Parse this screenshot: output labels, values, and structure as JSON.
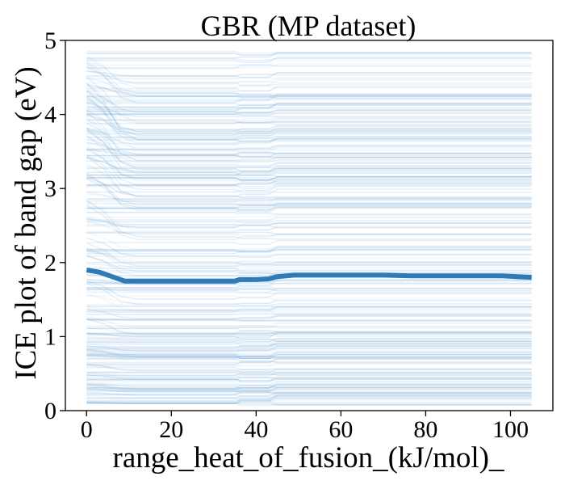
{
  "chart_data": {
    "type": "line",
    "title": "GBR (MP dataset)",
    "xlabel": "range_heat_of_fusion_(kJ/mol)_",
    "ylabel": "ICE plot of band gap (eV)",
    "xlim": [
      -5,
      110
    ],
    "ylim": [
      0,
      5
    ],
    "x_ticks": [
      0,
      20,
      40,
      60,
      80,
      100
    ],
    "y_ticks": [
      0,
      1,
      2,
      3,
      4,
      5
    ],
    "x_tick_labels": [
      "0",
      "20",
      "40",
      "60",
      "80",
      "100"
    ],
    "y_tick_labels": [
      "0",
      "1",
      "2",
      "3",
      "4",
      "5"
    ],
    "grid": false,
    "legend": null,
    "colors": {
      "ice_lines": "#5b9bd0",
      "pd_line": "#2f7bb8"
    },
    "series": [
      {
        "role": "average",
        "x": [
          0,
          3,
          6,
          9,
          12,
          16,
          20,
          25,
          30,
          35,
          36,
          40,
          43,
          45,
          49,
          55,
          60,
          70,
          77,
          80,
          90,
          98,
          105
        ],
        "y": [
          1.9,
          1.87,
          1.81,
          1.75,
          1.75,
          1.75,
          1.75,
          1.75,
          1.75,
          1.75,
          1.77,
          1.77,
          1.78,
          1.81,
          1.83,
          1.83,
          1.83,
          1.83,
          1.82,
          1.82,
          1.82,
          1.82,
          1.8
        ]
      }
    ]
  }
}
